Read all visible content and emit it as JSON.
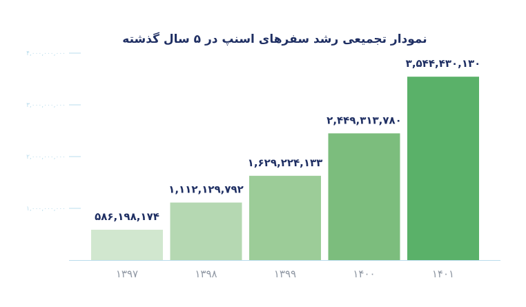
{
  "chart_data": {
    "type": "bar",
    "title": "نمودار تجمیعی رشد سفرهای اسنپ در ۵ سال گذشته",
    "xlabel": "",
    "ylabel": "",
    "categories": [
      "۱۳۹۷",
      "۱۳۹۸",
      "۱۳۹۹",
      "۱۴۰۰",
      "۱۴۰۱"
    ],
    "values": [
      586198174,
      1112129792,
      1629224133,
      2449313780,
      3544430130
    ],
    "data_labels": [
      "۵۸۶,۱۹۸,۱۷۴",
      "۱,۱۱۲,۱۲۹,۷۹۲",
      "۱,۶۲۹,۲۲۴,۱۳۳",
      "۲,۴۴۹,۳۱۳,۷۸۰",
      "۳,۵۴۴,۴۳۰,۱۳۰"
    ],
    "yticks": [
      1000000000,
      2000000000,
      3000000000,
      4000000000
    ],
    "ytick_labels": [
      "۱,۰۰۰,۰۰۰,۰۰۰",
      "۲,۰۰۰,۰۰۰,۰۰۰",
      "۳,۰۰۰,۰۰۰,۰۰۰",
      "۴,۰۰۰,۰۰۰,۰۰۰"
    ],
    "ylim": [
      0,
      4000000000
    ],
    "grid": false,
    "legend": "none",
    "bar_colors": [
      "#d1e7cf",
      "#b5d8b2",
      "#9ccc98",
      "#7cbd7d",
      "#5ab169"
    ],
    "colors": {
      "title": "#1f2f63",
      "data_label": "#1f2f63",
      "x_tick": "#8f97a3",
      "y_tick": "#b9dcec",
      "axis": "#b9dcec"
    }
  }
}
